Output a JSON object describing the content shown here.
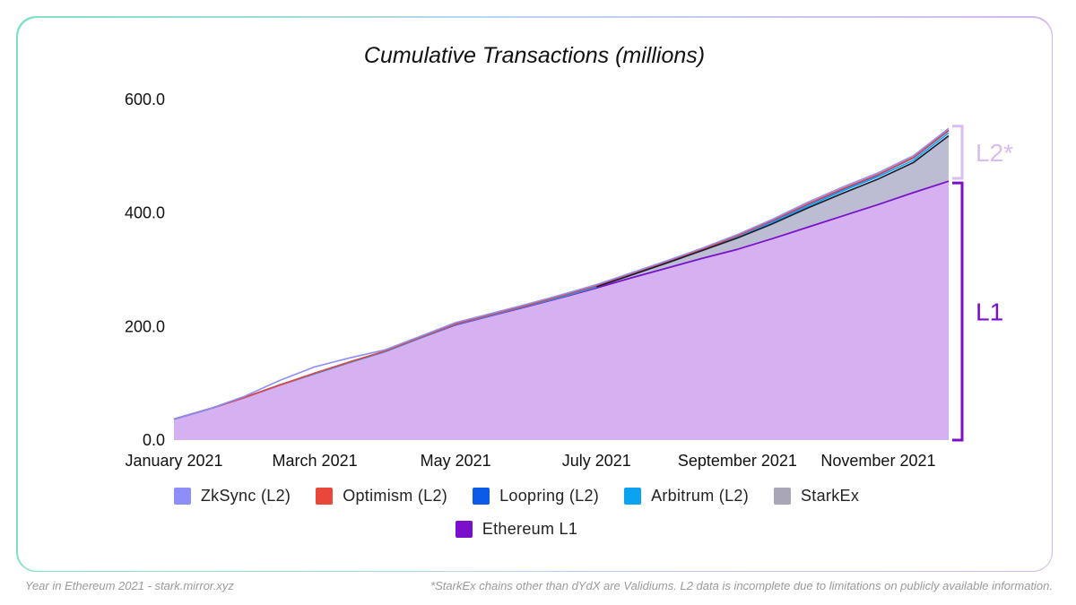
{
  "chart_data": {
    "type": "area",
    "title": "Cumulative Transactions (millions)",
    "xlabel": "",
    "ylabel": "",
    "ylim": [
      0,
      600
    ],
    "y_ticks": [
      "0.0",
      "200.0",
      "400.0",
      "600.0"
    ],
    "x_tick_labels": [
      "January 2021",
      "March 2021",
      "May 2021",
      "July 2021",
      "September 2021",
      "November 2021"
    ],
    "x_tick_positions": [
      0,
      2,
      4,
      6,
      8,
      10
    ],
    "x": [
      0,
      0.5,
      1,
      1.5,
      2,
      2.5,
      3,
      3.5,
      4,
      4.5,
      5,
      5.5,
      6,
      6.5,
      7,
      7.5,
      8,
      8.5,
      9,
      9.5,
      10,
      10.5,
      11
    ],
    "series": [
      {
        "name": "Ethereum L1",
        "color": "#7a0fcc",
        "fill": "#d6b1f1",
        "values": [
          37,
          55,
          75,
          97,
          117,
          137,
          156,
          180,
          203,
          219,
          235,
          251,
          268,
          286,
          303,
          320,
          336,
          355,
          375,
          395,
          415,
          436,
          456
        ]
      },
      {
        "name": "StarkEx",
        "color": "#a9a6b8",
        "fill": "#bcbcd2",
        "values": [
          0,
          0,
          0,
          0,
          0,
          0,
          0,
          0,
          1,
          1,
          1,
          1,
          2,
          5,
          9,
          14,
          20,
          26,
          34,
          40,
          45,
          53,
          80
        ]
      },
      {
        "name": "Arbitrum (L2)",
        "color": "#0ba2f0",
        "values": [
          0,
          0,
          0,
          0,
          0,
          0,
          0,
          0,
          0,
          0,
          0,
          0,
          0,
          0,
          0,
          0,
          1,
          2,
          3,
          4,
          4,
          4,
          5
        ]
      },
      {
        "name": "Loopring (L2)",
        "color": "#0b5be8",
        "values": [
          0,
          0,
          0,
          0,
          1,
          1,
          1,
          1,
          1,
          1,
          1,
          2,
          2,
          2,
          2,
          2,
          3,
          3,
          3,
          3,
          3,
          4,
          4
        ]
      },
      {
        "name": "Optimism (L2)",
        "color": "#e8473a",
        "values": [
          0,
          0,
          0,
          0,
          0,
          0,
          0,
          0,
          0,
          0,
          0,
          0,
          0,
          0,
          0,
          0,
          0,
          1,
          1,
          1,
          1,
          1,
          1
        ]
      },
      {
        "name": "ZkSync (L2)",
        "color": "#8e8ef8",
        "values": [
          0,
          0,
          2,
          8,
          11,
          7,
          2,
          2,
          2,
          2,
          2,
          2,
          2,
          2,
          2,
          2,
          2,
          2,
          3,
          3,
          3,
          3,
          3
        ]
      }
    ],
    "legend_position": "bottom",
    "brackets": [
      {
        "label": "L2*",
        "color": "#d9bdf0",
        "from": 461,
        "to": 553
      },
      {
        "label": "L1",
        "color": "#7a0fcc",
        "from": 0,
        "to": 453
      }
    ]
  },
  "legend": [
    {
      "label": "ZkSync (L2)",
      "color": "#8e8ef8"
    },
    {
      "label": "Optimism (L2)",
      "color": "#e8473a"
    },
    {
      "label": "Loopring (L2)",
      "color": "#0b5be8"
    },
    {
      "label": "Arbitrum (L2)",
      "color": "#0ba2f0"
    },
    {
      "label": "StarkEx",
      "color": "#a9a6b8"
    },
    {
      "label": "Ethereum L1",
      "color": "#7a0fcc"
    }
  ],
  "footer": {
    "left": "Year in Ethereum 2021 - stark.mirror.xyz",
    "right": "*StarkEx chains other than dYdX are Validiums. L2 data is incomplete due to limitations on publicly available information."
  }
}
